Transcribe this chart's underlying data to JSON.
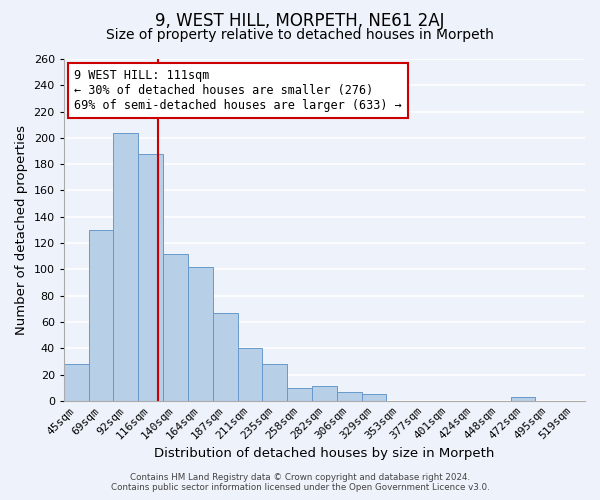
{
  "title": "9, WEST HILL, MORPETH, NE61 2AJ",
  "subtitle": "Size of property relative to detached houses in Morpeth",
  "xlabel": "Distribution of detached houses by size in Morpeth",
  "ylabel": "Number of detached properties",
  "categories": [
    "45sqm",
    "69sqm",
    "92sqm",
    "116sqm",
    "140sqm",
    "164sqm",
    "187sqm",
    "211sqm",
    "235sqm",
    "258sqm",
    "282sqm",
    "306sqm",
    "329sqm",
    "353sqm",
    "377sqm",
    "401sqm",
    "424sqm",
    "448sqm",
    "472sqm",
    "495sqm",
    "519sqm"
  ],
  "values": [
    28,
    130,
    204,
    188,
    112,
    102,
    67,
    40,
    28,
    10,
    11,
    7,
    5,
    0,
    0,
    0,
    0,
    0,
    3,
    0,
    0
  ],
  "bar_color": "#b8cfe8",
  "bar_edge_color": "#6699cc",
  "vline_x": 3.3,
  "vline_color": "#cc0000",
  "annotation_title": "9 WEST HILL: 111sqm",
  "annotation_line1": "← 30% of detached houses are smaller (276)",
  "annotation_line2": "69% of semi-detached houses are larger (633) →",
  "annotation_box_color": "white",
  "annotation_box_edge": "#cc0000",
  "footer1": "Contains HM Land Registry data © Crown copyright and database right 2024.",
  "footer2": "Contains public sector information licensed under the Open Government Licence v3.0.",
  "ylim": [
    0,
    260
  ],
  "yticks": [
    0,
    20,
    40,
    60,
    80,
    100,
    120,
    140,
    160,
    180,
    200,
    220,
    240,
    260
  ],
  "bg_color": "#eef2fa",
  "grid_color": "white",
  "title_fontsize": 12,
  "subtitle_fontsize": 10,
  "axis_label_fontsize": 9.5,
  "tick_fontsize": 8,
  "annotation_fontsize": 8.5
}
